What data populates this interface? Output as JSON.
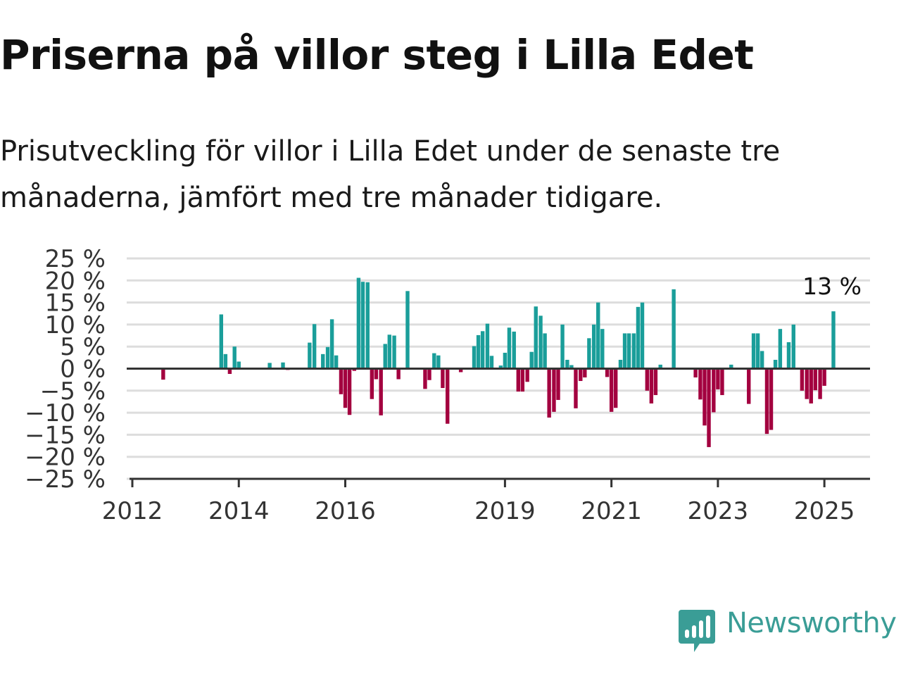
{
  "title": "Priserna på villor steg i Lilla Edet",
  "subtitle": "Prisutveckling för villor i Lilla Edet under de senaste tre månaderna, jämfört med tre månader tidigare.",
  "brand": {
    "name": "Newsworthy",
    "color": "#3a9d96",
    "icon": "newsworthy-logo-icon"
  },
  "colors": {
    "positive": "#1a9e9a",
    "negative": "#a3003f",
    "grid": "#dddddd",
    "zero_line": "#333333",
    "text": "#333333"
  },
  "chart_data": {
    "type": "bar",
    "title": "Priserna på villor steg i Lilla Edet",
    "xlabel": "",
    "ylabel": "",
    "ylim": [
      -25,
      25
    ],
    "grid": true,
    "y_ticks": [
      25,
      20,
      15,
      10,
      5,
      0,
      -5,
      -10,
      -15,
      -20,
      -25
    ],
    "y_tick_labels": [
      "25 %",
      "20 %",
      "15 %",
      "10 %",
      "5 %",
      "0 %",
      "−5 %",
      "−10 %",
      "−15 %",
      "−20 %",
      "−25 %"
    ],
    "x_ticks": [
      "2012",
      "2014",
      "2016",
      "2019",
      "2021",
      "2023",
      "2025"
    ],
    "x_tick_positions": [
      2012.0,
      2014.0,
      2016.0,
      2019.0,
      2021.0,
      2023.0,
      2025.0
    ],
    "x_domain": [
      2012.0,
      2025.75
    ],
    "last_value_label": "13 %",
    "series": [
      {
        "values": [
          {
            "x": 2012.58,
            "y": -2.5
          },
          {
            "x": 2013.67,
            "y": 12.3
          },
          {
            "x": 2013.75,
            "y": 3.3
          },
          {
            "x": 2013.83,
            "y": -1.2
          },
          {
            "x": 2013.92,
            "y": 5.0
          },
          {
            "x": 2014.0,
            "y": 1.6
          },
          {
            "x": 2014.58,
            "y": 1.3
          },
          {
            "x": 2014.83,
            "y": 1.4
          },
          {
            "x": 2014.92,
            "y": -0.3
          },
          {
            "x": 2015.33,
            "y": 5.9
          },
          {
            "x": 2015.42,
            "y": 10.1
          },
          {
            "x": 2015.58,
            "y": 3.3
          },
          {
            "x": 2015.67,
            "y": 4.9
          },
          {
            "x": 2015.75,
            "y": 11.2
          },
          {
            "x": 2015.83,
            "y": 3.0
          },
          {
            "x": 2015.92,
            "y": -5.8
          },
          {
            "x": 2016.0,
            "y": -8.9
          },
          {
            "x": 2016.08,
            "y": -10.5
          },
          {
            "x": 2016.17,
            "y": -0.5
          },
          {
            "x": 2016.25,
            "y": 20.6
          },
          {
            "x": 2016.33,
            "y": 19.7
          },
          {
            "x": 2016.42,
            "y": 19.6
          },
          {
            "x": 2016.5,
            "y": -6.9
          },
          {
            "x": 2016.58,
            "y": -2.4
          },
          {
            "x": 2016.67,
            "y": -10.6
          },
          {
            "x": 2016.75,
            "y": 5.6
          },
          {
            "x": 2016.83,
            "y": 7.7
          },
          {
            "x": 2016.92,
            "y": 7.5
          },
          {
            "x": 2017.0,
            "y": -2.4
          },
          {
            "x": 2017.17,
            "y": 17.6
          },
          {
            "x": 2017.5,
            "y": -4.6
          },
          {
            "x": 2017.58,
            "y": -2.6
          },
          {
            "x": 2017.67,
            "y": 3.5
          },
          {
            "x": 2017.75,
            "y": 3.0
          },
          {
            "x": 2017.83,
            "y": -4.4
          },
          {
            "x": 2017.92,
            "y": -12.5
          },
          {
            "x": 2018.17,
            "y": -0.8
          },
          {
            "x": 2018.42,
            "y": 5.1
          },
          {
            "x": 2018.5,
            "y": 7.6
          },
          {
            "x": 2018.58,
            "y": 8.5
          },
          {
            "x": 2018.67,
            "y": 10.2
          },
          {
            "x": 2018.75,
            "y": 2.9
          },
          {
            "x": 2018.92,
            "y": 0.7
          },
          {
            "x": 2019.0,
            "y": 3.6
          },
          {
            "x": 2019.08,
            "y": 9.3
          },
          {
            "x": 2019.17,
            "y": 8.4
          },
          {
            "x": 2019.25,
            "y": -5.2
          },
          {
            "x": 2019.33,
            "y": -5.2
          },
          {
            "x": 2019.42,
            "y": -3.0
          },
          {
            "x": 2019.5,
            "y": 3.8
          },
          {
            "x": 2019.58,
            "y": 14.1
          },
          {
            "x": 2019.67,
            "y": 12.0
          },
          {
            "x": 2019.75,
            "y": 8.0
          },
          {
            "x": 2019.83,
            "y": -11.1
          },
          {
            "x": 2019.92,
            "y": -9.8
          },
          {
            "x": 2020.0,
            "y": -7.1
          },
          {
            "x": 2020.08,
            "y": 10.0
          },
          {
            "x": 2020.17,
            "y": 2.0
          },
          {
            "x": 2020.25,
            "y": 0.8
          },
          {
            "x": 2020.33,
            "y": -9.0
          },
          {
            "x": 2020.42,
            "y": -2.8
          },
          {
            "x": 2020.5,
            "y": -2.0
          },
          {
            "x": 2020.58,
            "y": 6.9
          },
          {
            "x": 2020.67,
            "y": 10.0
          },
          {
            "x": 2020.75,
            "y": 15.0
          },
          {
            "x": 2020.83,
            "y": 9.0
          },
          {
            "x": 2020.92,
            "y": -1.9
          },
          {
            "x": 2021.0,
            "y": -9.8
          },
          {
            "x": 2021.08,
            "y": -8.9
          },
          {
            "x": 2021.17,
            "y": 2.0
          },
          {
            "x": 2021.25,
            "y": 8.0
          },
          {
            "x": 2021.33,
            "y": 8.0
          },
          {
            "x": 2021.42,
            "y": 8.0
          },
          {
            "x": 2021.5,
            "y": 14.0
          },
          {
            "x": 2021.58,
            "y": 15.0
          },
          {
            "x": 2021.67,
            "y": -5.0
          },
          {
            "x": 2021.75,
            "y": -7.9
          },
          {
            "x": 2021.83,
            "y": -6.0
          },
          {
            "x": 2021.92,
            "y": 0.9
          },
          {
            "x": 2022.17,
            "y": 18.0
          },
          {
            "x": 2022.58,
            "y": -2.0
          },
          {
            "x": 2022.67,
            "y": -7.0
          },
          {
            "x": 2022.75,
            "y": -12.9
          },
          {
            "x": 2022.83,
            "y": -17.8
          },
          {
            "x": 2022.92,
            "y": -9.9
          },
          {
            "x": 2023.0,
            "y": -4.7
          },
          {
            "x": 2023.08,
            "y": -6.0
          },
          {
            "x": 2023.25,
            "y": 0.9
          },
          {
            "x": 2023.58,
            "y": -8.0
          },
          {
            "x": 2023.67,
            "y": 8.0
          },
          {
            "x": 2023.75,
            "y": 8.0
          },
          {
            "x": 2023.83,
            "y": 4.0
          },
          {
            "x": 2023.92,
            "y": -14.8
          },
          {
            "x": 2024.0,
            "y": -13.9
          },
          {
            "x": 2024.08,
            "y": 2.0
          },
          {
            "x": 2024.17,
            "y": 9.0
          },
          {
            "x": 2024.33,
            "y": 6.0
          },
          {
            "x": 2024.42,
            "y": 10.0
          },
          {
            "x": 2024.58,
            "y": -5.0
          },
          {
            "x": 2024.67,
            "y": -6.9
          },
          {
            "x": 2024.75,
            "y": -7.9
          },
          {
            "x": 2024.83,
            "y": -4.9
          },
          {
            "x": 2024.92,
            "y": -6.9
          },
          {
            "x": 2025.0,
            "y": -3.9
          },
          {
            "x": 2025.17,
            "y": 13.0
          }
        ]
      }
    ]
  }
}
